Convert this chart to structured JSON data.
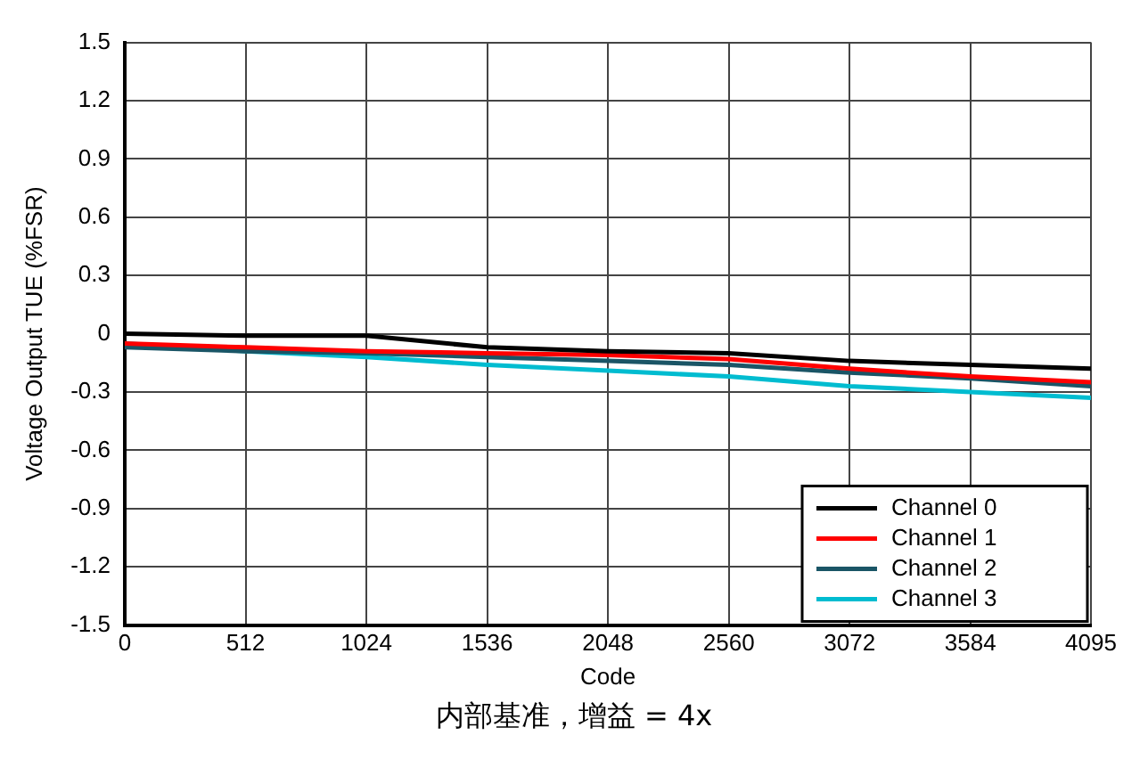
{
  "chart_data": {
    "type": "line",
    "xlabel": "Code",
    "ylabel": "Voltage Output TUE (%FSR)",
    "annotations": [
      "内部基准，增益 = 4x"
    ],
    "x": [
      0,
      512,
      1024,
      1536,
      2048,
      2560,
      3072,
      3584,
      4095
    ],
    "series": [
      {
        "name": "Channel 0",
        "color": "#000000",
        "values": [
          0,
          -0.01,
          -0.01,
          -0.07,
          -0.09,
          -0.1,
          -0.14,
          -0.16,
          -0.18
        ]
      },
      {
        "name": "Channel 1",
        "color": "#ff0000",
        "values": [
          -0.05,
          -0.07,
          -0.09,
          -0.1,
          -0.11,
          -0.13,
          -0.18,
          -0.22,
          -0.25
        ]
      },
      {
        "name": "Channel 2",
        "color": "#1a5566",
        "values": [
          -0.07,
          -0.09,
          -0.1,
          -0.12,
          -0.14,
          -0.16,
          -0.2,
          -0.23,
          -0.27
        ]
      },
      {
        "name": "Channel 3",
        "color": "#00bcd0",
        "values": [
          -0.05,
          -0.09,
          -0.12,
          -0.16,
          -0.19,
          -0.22,
          -0.27,
          -0.3,
          -0.33
        ]
      }
    ],
    "xlim": [
      0,
      4095
    ],
    "xticks": [
      0,
      512,
      1024,
      1536,
      2048,
      2560,
      3072,
      3584,
      4095
    ],
    "ylim": [
      -1.5,
      1.5
    ],
    "yticks": [
      -1.5,
      -1.2,
      -0.9,
      -0.6,
      -0.3,
      0,
      0.3,
      0.6,
      0.9,
      1.2,
      1.5
    ],
    "grid": true,
    "legend": "bottom right",
    "marker": "none",
    "line_style": "solid"
  }
}
